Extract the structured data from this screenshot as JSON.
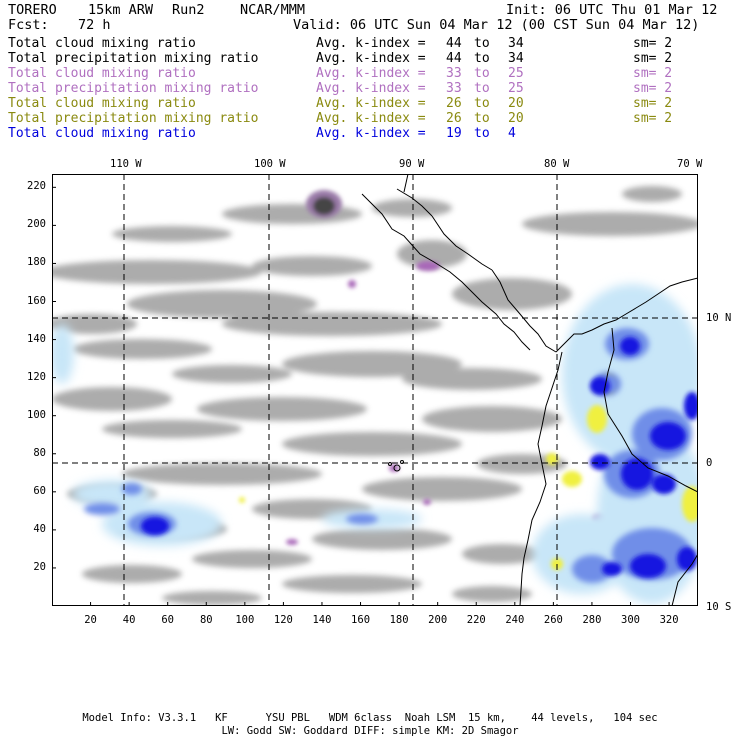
{
  "header": {
    "model": "TORERO",
    "resolution": "15km ARW",
    "run": "Run2",
    "org": "NCAR/MMM",
    "init": "Init: 06 UTC Thu 01 Mar 12",
    "fcst_label": "Fcst:",
    "fcst_value": "72 h",
    "valid": "Valid: 06 UTC Sun 04 Mar 12 (00 CST Sun 04 Mar 12)"
  },
  "legend": [
    {
      "field": "Total cloud mixing ratio",
      "stat": "Avg. k-index =",
      "a": "44",
      "to": "to",
      "b": "34",
      "sm": "sm= 2",
      "color": "#000000"
    },
    {
      "field": "Total precipitation mixing ratio",
      "stat": "Avg. k-index =",
      "a": "44",
      "to": "to",
      "b": "34",
      "sm": "sm= 2",
      "color": "#000000"
    },
    {
      "field": "Total cloud mixing ratio",
      "stat": "Avg. k-index =",
      "a": "33",
      "to": "to",
      "b": "25",
      "sm": "sm= 2",
      "color": "#b070c0"
    },
    {
      "field": "Total precipitation mixing ratio",
      "stat": "Avg. k-index =",
      "a": "33",
      "to": "to",
      "b": "25",
      "sm": "sm= 2",
      "color": "#b070c0"
    },
    {
      "field": "Total cloud mixing ratio",
      "stat": "Avg. k-index =",
      "a": "26",
      "to": "to",
      "b": "20",
      "sm": "sm= 2",
      "color": "#8a8a10"
    },
    {
      "field": "Total precipitation mixing ratio",
      "stat": "Avg. k-index =",
      "a": "26",
      "to": "to",
      "b": "20",
      "sm": "sm= 2",
      "color": "#8a8a10"
    },
    {
      "field": "Total cloud mixing ratio",
      "stat": "Avg. k-index =",
      "a": "19",
      "to": "to",
      "b": "4",
      "sm": "",
      "color": "#0000dd"
    }
  ],
  "map": {
    "x_ticks": [
      "20",
      "40",
      "60",
      "80",
      "100",
      "120",
      "140",
      "160",
      "180",
      "200",
      "220",
      "240",
      "260",
      "280",
      "300",
      "320"
    ],
    "y_ticks": [
      "20",
      "40",
      "60",
      "80",
      "100",
      "120",
      "140",
      "160",
      "180",
      "200",
      "220"
    ],
    "lon_labels": [
      "110 W",
      "100 W",
      "90 W",
      "80 W",
      "70 W"
    ],
    "lat_labels": [
      "10 N",
      "0",
      "10 S"
    ],
    "colors": {
      "cloud_gray": "#a0a0a0",
      "cloud_dark": "#555555",
      "purple": "#a868b8",
      "yellow": "#f0f040",
      "light_blue": "#c8e6f8",
      "mid_blue": "#7090e8",
      "blue": "#1010e0"
    }
  },
  "footer": {
    "line1": "Model Info: V3.3.1   KF      YSU PBL   WDM 6class  Noah LSM  15 km,    44 levels,   104 sec",
    "line2": "LW: Godd SW: Goddard DIFF: simple KM: 2D Smagor"
  }
}
